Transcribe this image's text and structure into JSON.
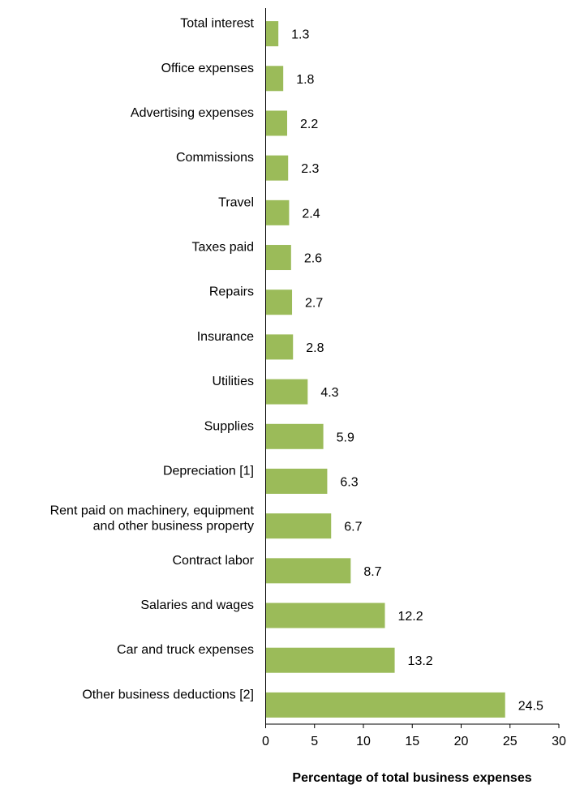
{
  "chart_data": {
    "type": "bar",
    "orientation": "horizontal",
    "categories": [
      "Total interest",
      "Office expenses",
      "Advertising expenses",
      "Commissions",
      "Travel",
      "Taxes paid",
      "Repairs",
      "Insurance",
      "Utilities",
      "Supplies",
      "Depreciation [1]",
      [
        "Rent paid on machinery, equipment",
        "and other business property"
      ],
      "Contract labor",
      "Salaries and wages",
      "Car and truck expenses",
      "Other business deductions [2]"
    ],
    "values": [
      1.3,
      1.8,
      2.2,
      2.3,
      2.4,
      2.6,
      2.7,
      2.8,
      4.3,
      5.9,
      6.3,
      6.7,
      8.7,
      12.2,
      13.2,
      24.5
    ],
    "value_labels": [
      "1.3",
      "1.8",
      "2.2",
      "2.3",
      "2.4",
      "2.6",
      "2.7",
      "2.8",
      "4.3",
      "5.9",
      "6.3",
      "6.7",
      "8.7",
      "12.2",
      "13.2",
      "24.5"
    ],
    "xlim": [
      0,
      30
    ],
    "xticks": [
      0,
      5,
      10,
      15,
      20,
      25,
      30
    ],
    "xlabel": "Percentage of total business expenses",
    "bar_color": "#9bbb59",
    "grid": false,
    "legend": "none"
  }
}
